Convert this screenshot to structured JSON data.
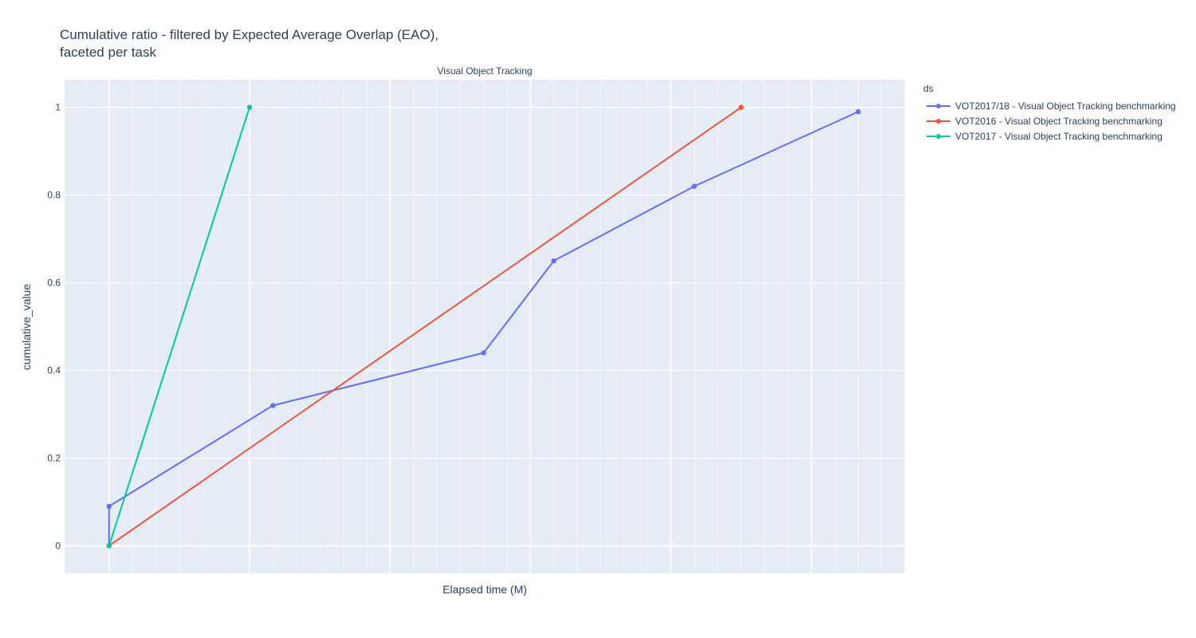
{
  "chart_data": {
    "type": "line",
    "title_lines": [
      "Cumulative ratio - filtered by Expected Average Overlap (EAO),",
      "faceted per task"
    ],
    "subplot_title": "Visual Object Tracking",
    "xlabel": "Elapsed time (M)",
    "ylabel": "cumulative_value",
    "ylim": [
      -0.063,
      1.063
    ],
    "xlim": [
      -1.9,
      34
    ],
    "yticks": [
      0,
      0.2,
      0.4,
      0.6,
      0.8,
      1
    ],
    "ytick_labels": [
      "0",
      "0.2",
      "0.4",
      "0.6",
      "0.8",
      "1"
    ],
    "grid": true,
    "legend": {
      "title": "ds",
      "position": "top-right"
    },
    "series": [
      {
        "name": "VOT2017/18 - Visual Object Tracking benchmarking",
        "color": "#636efa",
        "x": [
          0,
          0,
          7,
          16,
          19,
          25,
          32
        ],
        "y": [
          0,
          0.09,
          0.32,
          0.44,
          0.65,
          0.82,
          0.99
        ]
      },
      {
        "name": "VOT2016 - Visual Object Tracking benchmarking",
        "color": "#ef553b",
        "x": [
          0,
          27
        ],
        "y": [
          0,
          1
        ]
      },
      {
        "name": "VOT2017 - Visual Object Tracking benchmarking",
        "color": "#00cc96",
        "x": [
          0,
          6
        ],
        "y": [
          0,
          1
        ]
      }
    ]
  }
}
